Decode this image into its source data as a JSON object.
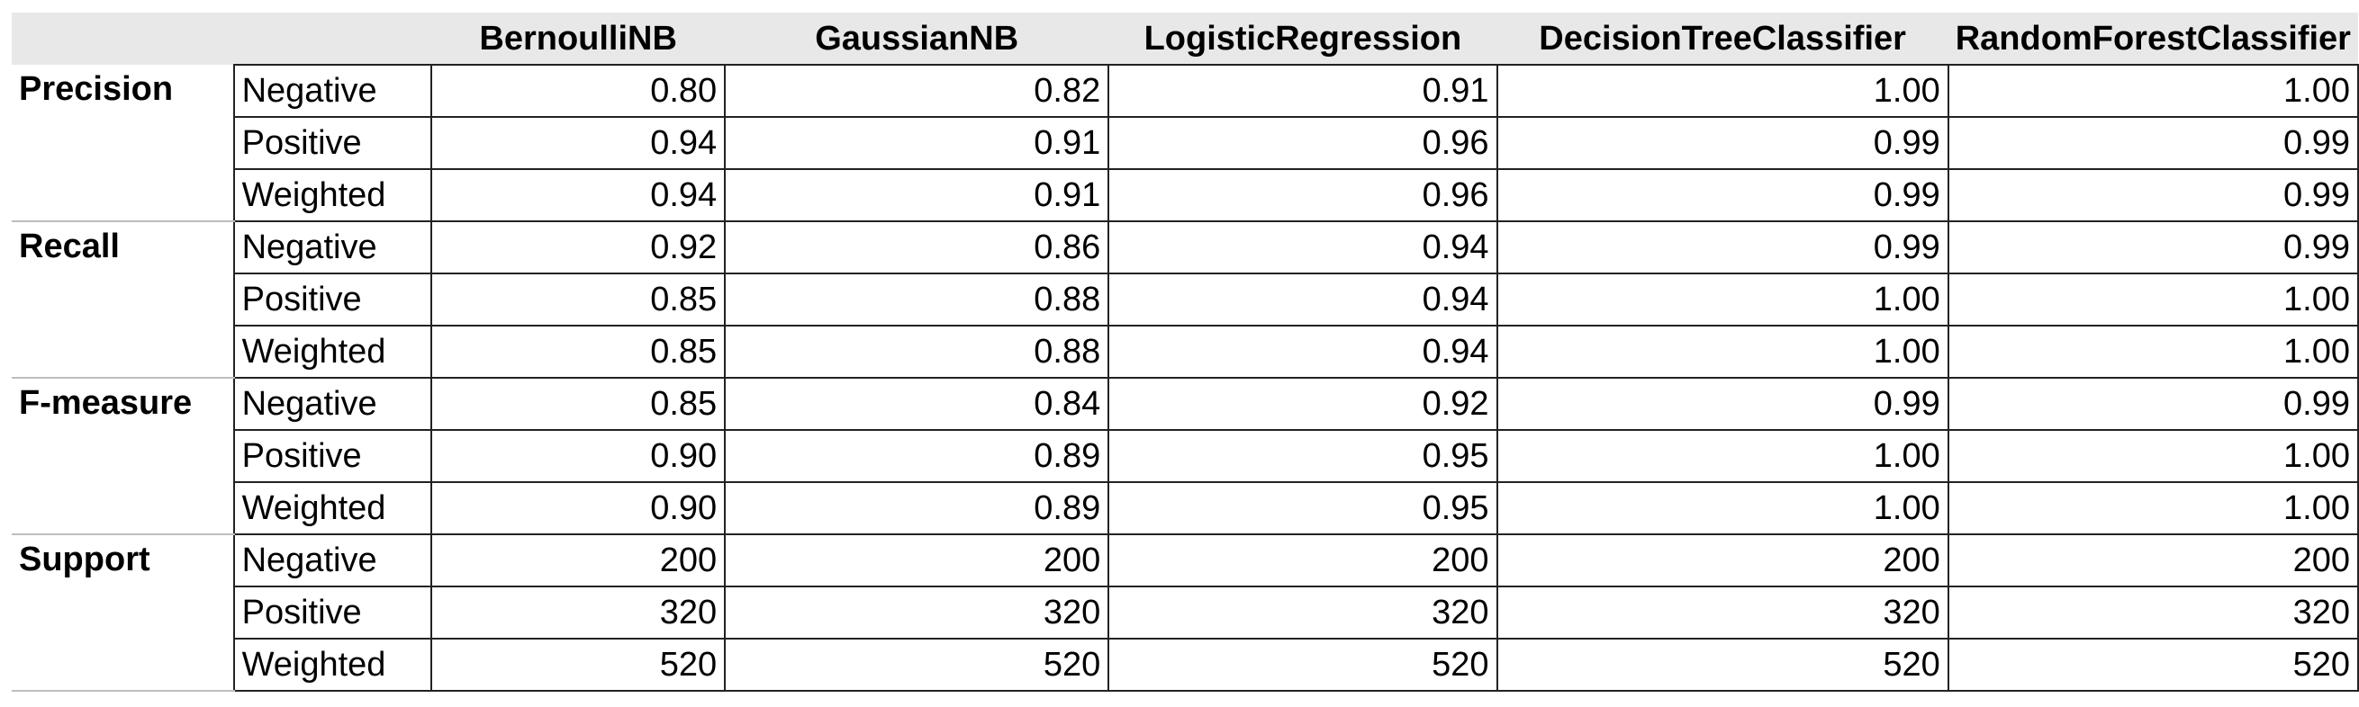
{
  "table": {
    "columns": [
      "BernoulliNB",
      "GaussianNB",
      "LogisticRegression",
      "DecisionTreeClassifier",
      "RandomForestClassifier"
    ],
    "groups": [
      {
        "metric": "Precision",
        "rows": [
          {
            "label": "Negative",
            "values": [
              "0.80",
              "0.82",
              "0.91",
              "1.00",
              "1.00"
            ]
          },
          {
            "label": "Positive",
            "values": [
              "0.94",
              "0.91",
              "0.96",
              "0.99",
              "0.99"
            ]
          },
          {
            "label": "Weighted",
            "values": [
              "0.94",
              "0.91",
              "0.96",
              "0.99",
              "0.99"
            ]
          }
        ]
      },
      {
        "metric": "Recall",
        "rows": [
          {
            "label": "Negative",
            "values": [
              "0.92",
              "0.86",
              "0.94",
              "0.99",
              "0.99"
            ]
          },
          {
            "label": "Positive",
            "values": [
              "0.85",
              "0.88",
              "0.94",
              "1.00",
              "1.00"
            ]
          },
          {
            "label": "Weighted",
            "values": [
              "0.85",
              "0.88",
              "0.94",
              "1.00",
              "1.00"
            ]
          }
        ]
      },
      {
        "metric": "F-measure",
        "rows": [
          {
            "label": "Negative",
            "values": [
              "0.85",
              "0.84",
              "0.92",
              "0.99",
              "0.99"
            ]
          },
          {
            "label": "Positive",
            "values": [
              "0.90",
              "0.89",
              "0.95",
              "1.00",
              "1.00"
            ]
          },
          {
            "label": "Weighted",
            "values": [
              "0.90",
              "0.89",
              "0.95",
              "1.00",
              "1.00"
            ]
          }
        ]
      },
      {
        "metric": "Support",
        "rows": [
          {
            "label": "Negative",
            "values": [
              "200",
              "200",
              "200",
              "200",
              "200"
            ]
          },
          {
            "label": "Positive",
            "values": [
              "320",
              "320",
              "320",
              "320",
              "320"
            ]
          },
          {
            "label": "Weighted",
            "values": [
              "520",
              "520",
              "520",
              "520",
              "520"
            ]
          }
        ]
      }
    ]
  }
}
